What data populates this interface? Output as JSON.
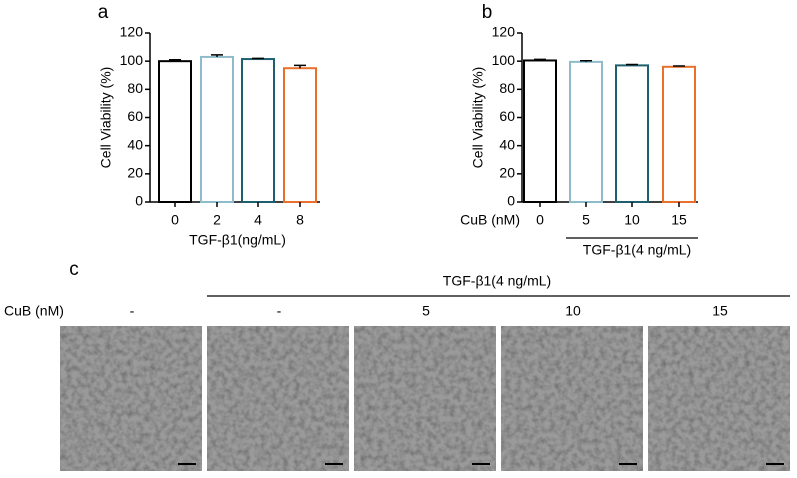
{
  "chart_data": [
    {
      "type": "bar",
      "panel": "a",
      "categories": [
        "0",
        "2",
        "4",
        "8"
      ],
      "values": [
        100,
        103,
        101.5,
        95
      ],
      "errors": [
        1,
        1.5,
        0.5,
        2
      ],
      "colors": [
        "#000000",
        "#8fbccc",
        "#1d5f6f",
        "#e8702a"
      ],
      "ylabel": "Cell Viability (%)",
      "xlabel": "TGF-β1(ng/mL)",
      "ylim": [
        0,
        120
      ],
      "yticks": [
        0,
        20,
        40,
        60,
        80,
        100,
        120
      ]
    },
    {
      "type": "bar",
      "panel": "b",
      "categories": [
        "0",
        "5",
        "10",
        "15"
      ],
      "values": [
        100.5,
        99.5,
        97,
        96
      ],
      "errors": [
        0.8,
        0.8,
        0.6,
        0.6
      ],
      "colors": [
        "#000000",
        "#8fbccc",
        "#1d5f6f",
        "#e8702a"
      ],
      "ylabel": "Cell Viability (%)",
      "x_row_label": "CuB (nM)",
      "group_label": "TGF-β1(4 ng/mL)",
      "ylim": [
        0,
        120
      ],
      "yticks": [
        0,
        20,
        40,
        60,
        80,
        100,
        120
      ]
    }
  ],
  "panel_c": {
    "label": "c",
    "treatment": "TGF-β1(4 ng/mL)",
    "row_label": "CuB (nM)",
    "conditions": [
      "-",
      "-",
      "5",
      "10",
      "15"
    ]
  }
}
